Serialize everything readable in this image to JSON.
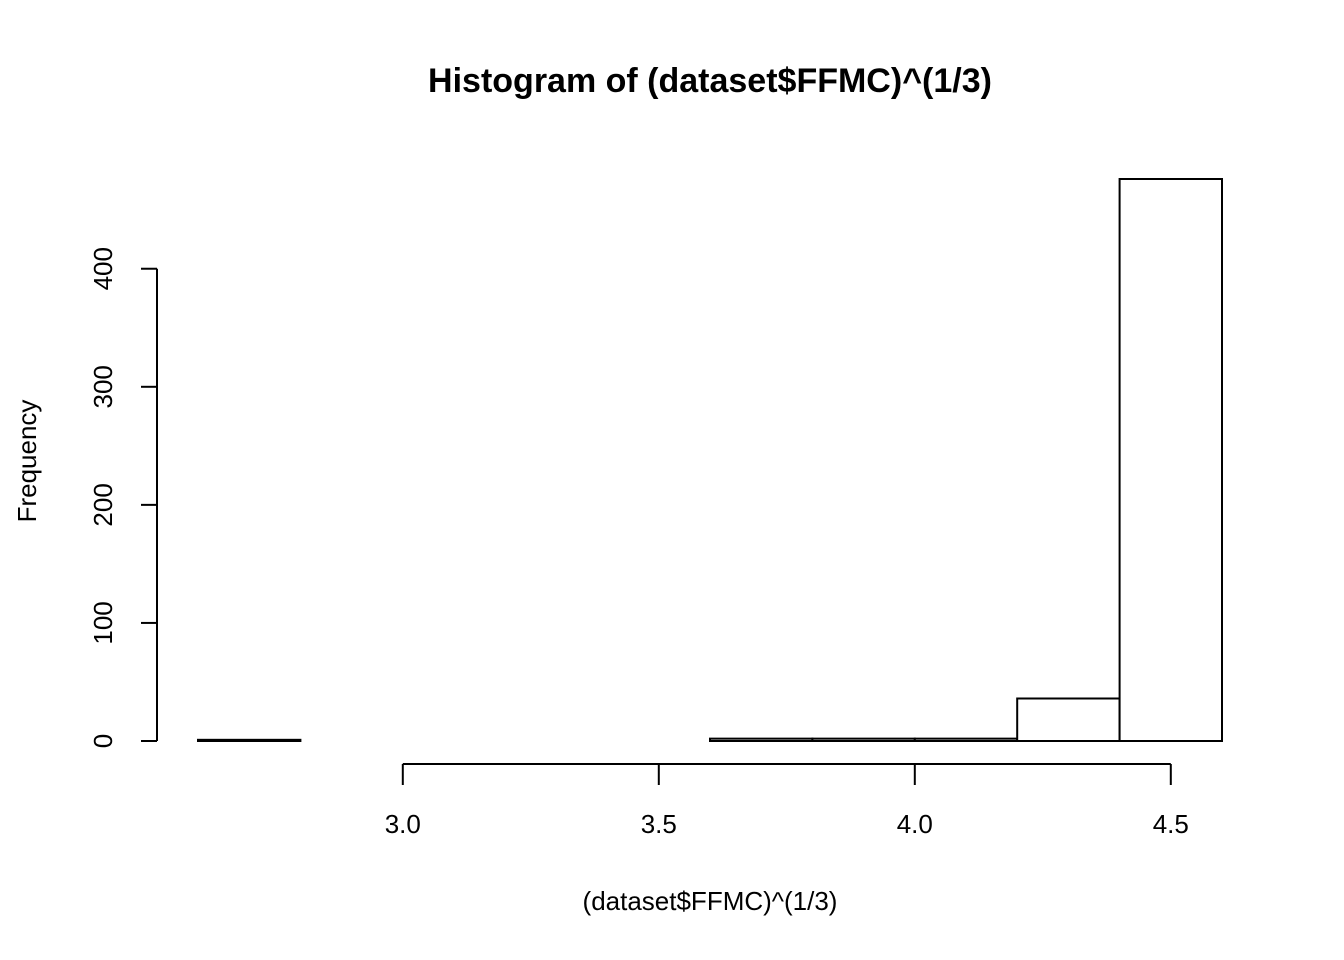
{
  "chart_data": {
    "type": "bar",
    "title": "Histogram of (dataset$FFMC)^(1/3)",
    "xlabel": "(dataset$FFMC)^(1/3)",
    "ylabel": "Frequency",
    "bin_edges": [
      2.6,
      2.8,
      3.0,
      3.2,
      3.4,
      3.6,
      3.8,
      4.0,
      4.2,
      4.4,
      4.6
    ],
    "counts": [
      1,
      0,
      0,
      0,
      0,
      2,
      2,
      2,
      36,
      476
    ],
    "xlim": [
      2.6,
      4.6
    ],
    "ylim": [
      0,
      476
    ],
    "x_ticks": [
      3.0,
      3.5,
      4.0,
      4.5
    ],
    "x_tick_labels": [
      "3.0",
      "3.5",
      "4.0",
      "4.5"
    ],
    "y_ticks": [
      0,
      100,
      200,
      300,
      400
    ],
    "y_tick_labels": [
      "0",
      "100",
      "200",
      "300",
      "400"
    ],
    "grid": false,
    "legend": "none"
  }
}
